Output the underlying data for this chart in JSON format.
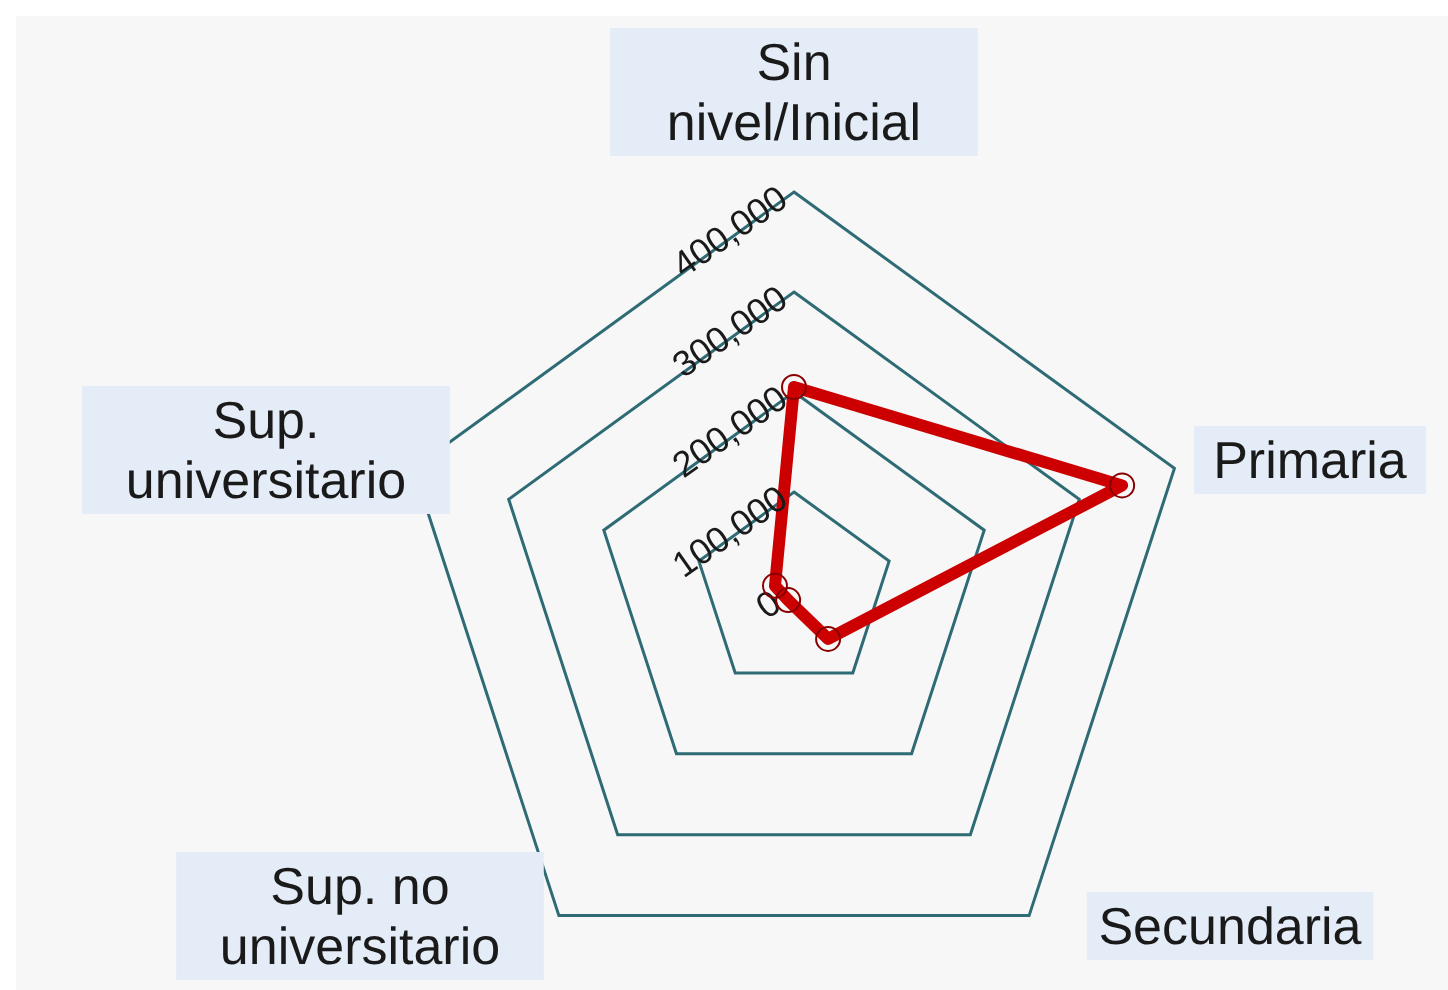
{
  "chart_data": {
    "type": "radar",
    "categories": [
      "Sin nivel/Inicial",
      "Primaria",
      "Secundaria",
      "Sup. no universitario",
      "Sup. universitario"
    ],
    "series": [
      {
        "color": "#cc0000",
        "values": [
          205000,
          345000,
          58000,
          10000,
          20000
        ]
      }
    ],
    "ylim": [
      0,
      400000
    ],
    "yticks": [
      {
        "value": 0,
        "label": "0"
      },
      {
        "value": 100000,
        "label": "100,000"
      },
      {
        "value": 200000,
        "label": "200,000"
      },
      {
        "value": 300000,
        "label": "300,000"
      },
      {
        "value": 400000,
        "label": "400,000"
      }
    ],
    "grid": true,
    "marker": "circle",
    "legend": false
  }
}
